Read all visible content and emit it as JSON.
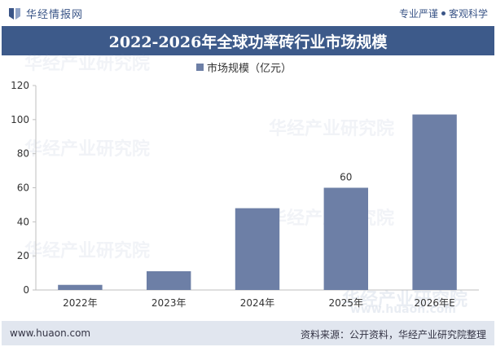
{
  "header": {
    "brand_name": "华经情报网",
    "slogan_left": "专业严谨",
    "slogan_right": "客观科学",
    "logo_icon": "huajing-logo-icon"
  },
  "watermark": "华经产业研究院",
  "watermark_url": "www.huaon.com",
  "footer": {
    "website": "www.huaon.com",
    "source": "资料来源：公开资料，华经产业研究院整理"
  },
  "colors": {
    "title_bg": "#3d5a8a",
    "bar": "#6d7fa6",
    "footer_bg": "#e1e6ef"
  },
  "chart_data": {
    "type": "bar",
    "title": "2022-2026年全球功率砖行业市场规模",
    "categories": [
      "2022年",
      "2023年",
      "2024年",
      "2025年",
      "2026年E"
    ],
    "series": [
      {
        "name": "市场规模（亿元）",
        "values": [
          3,
          11,
          48,
          60,
          103
        ]
      }
    ],
    "data_labels": [
      null,
      null,
      null,
      "60",
      null
    ],
    "yticks": [
      0,
      20,
      40,
      60,
      80,
      100,
      120
    ],
    "ylim": [
      0,
      120
    ],
    "xlabel": "",
    "ylabel": "",
    "grid": false,
    "legend_position": "top-center"
  }
}
